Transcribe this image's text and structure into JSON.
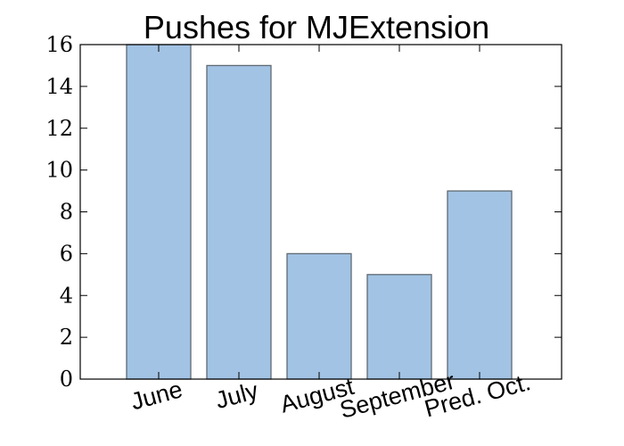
{
  "chart_data": {
    "type": "bar",
    "title": "Pushes for MJExtension",
    "xlabel": "",
    "ylabel": "",
    "categories": [
      "June",
      "July",
      "August",
      "September",
      "Pred. Oct."
    ],
    "values": [
      16,
      15,
      6,
      5,
      9
    ],
    "ylim": [
      0,
      16
    ],
    "yticks": [
      "0",
      "2",
      "4",
      "6",
      "8",
      "10",
      "12",
      "14",
      "16"
    ],
    "grid": false,
    "colors": {
      "bar_fill": "#a2c3e4",
      "bar_edge": "#5f6a73",
      "axis": "#000000"
    }
  }
}
